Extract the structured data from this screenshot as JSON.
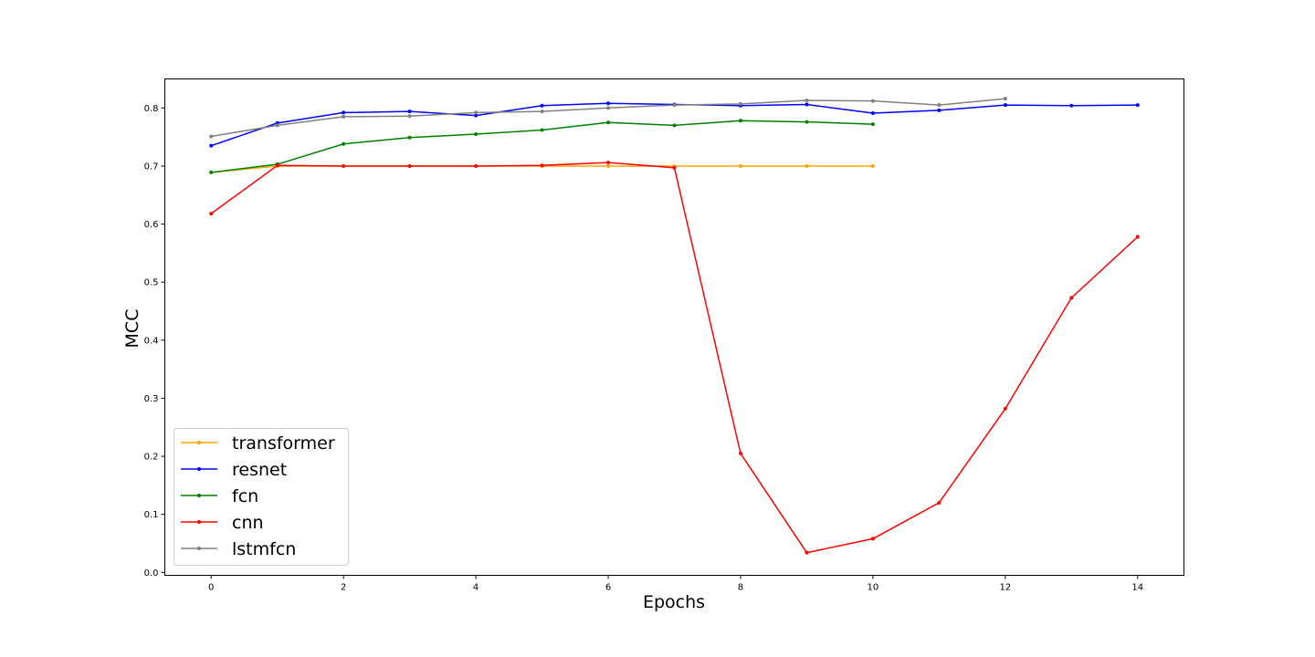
{
  "chart_data": {
    "type": "line",
    "title": "",
    "xlabel": "Epochs",
    "ylabel": "MCC",
    "xlim": [
      -0.7,
      14.7
    ],
    "ylim": [
      -0.005,
      0.85
    ],
    "xticks": [
      0,
      2,
      4,
      6,
      8,
      10,
      12,
      14
    ],
    "yticks": [
      0.0,
      0.1,
      0.2,
      0.3,
      0.4,
      0.5,
      0.6,
      0.7,
      0.8
    ],
    "ytick_labels": [
      "0.0",
      "0.1",
      "0.2",
      "0.3",
      "0.4",
      "0.5",
      "0.6",
      "0.7",
      "0.8"
    ],
    "grid": false,
    "legend_position": "lower-left",
    "series": [
      {
        "name": "transformer",
        "color": "#ffa500",
        "x": [
          0,
          1,
          2,
          3,
          4,
          5,
          6,
          7,
          8,
          9,
          10
        ],
        "values": [
          0.689,
          0.7,
          0.7,
          0.7,
          0.7,
          0.7,
          0.7,
          0.7,
          0.7,
          0.7,
          0.7
        ]
      },
      {
        "name": "resnet",
        "color": "#0000ff",
        "x": [
          0,
          1,
          2,
          3,
          4,
          5,
          6,
          7,
          8,
          9,
          10,
          11,
          12,
          13,
          14
        ],
        "values": [
          0.735,
          0.774,
          0.792,
          0.794,
          0.787,
          0.804,
          0.808,
          0.806,
          0.804,
          0.806,
          0.791,
          0.796,
          0.805,
          0.804,
          0.805
        ]
      },
      {
        "name": "fcn",
        "color": "#008000",
        "x": [
          0,
          1,
          2,
          3,
          4,
          5,
          6,
          7,
          8,
          9,
          10
        ],
        "values": [
          0.689,
          0.703,
          0.738,
          0.749,
          0.755,
          0.762,
          0.775,
          0.77,
          0.778,
          0.776,
          0.772
        ]
      },
      {
        "name": "cnn",
        "color": "#ff0000",
        "x": [
          0,
          1,
          2,
          3,
          4,
          5,
          6,
          7,
          8,
          9,
          10,
          11,
          12,
          13,
          14
        ],
        "values": [
          0.618,
          0.701,
          0.7,
          0.7,
          0.7,
          0.701,
          0.706,
          0.697,
          0.205,
          0.034,
          0.058,
          0.12,
          0.282,
          0.473,
          0.578
        ]
      },
      {
        "name": "lstmfcn",
        "color": "#808080",
        "x": [
          0,
          1,
          2,
          3,
          4,
          5,
          6,
          7,
          8,
          9,
          10,
          11,
          12
        ],
        "values": [
          0.751,
          0.77,
          0.785,
          0.786,
          0.792,
          0.794,
          0.8,
          0.805,
          0.807,
          0.813,
          0.812,
          0.805,
          0.816
        ]
      }
    ]
  }
}
